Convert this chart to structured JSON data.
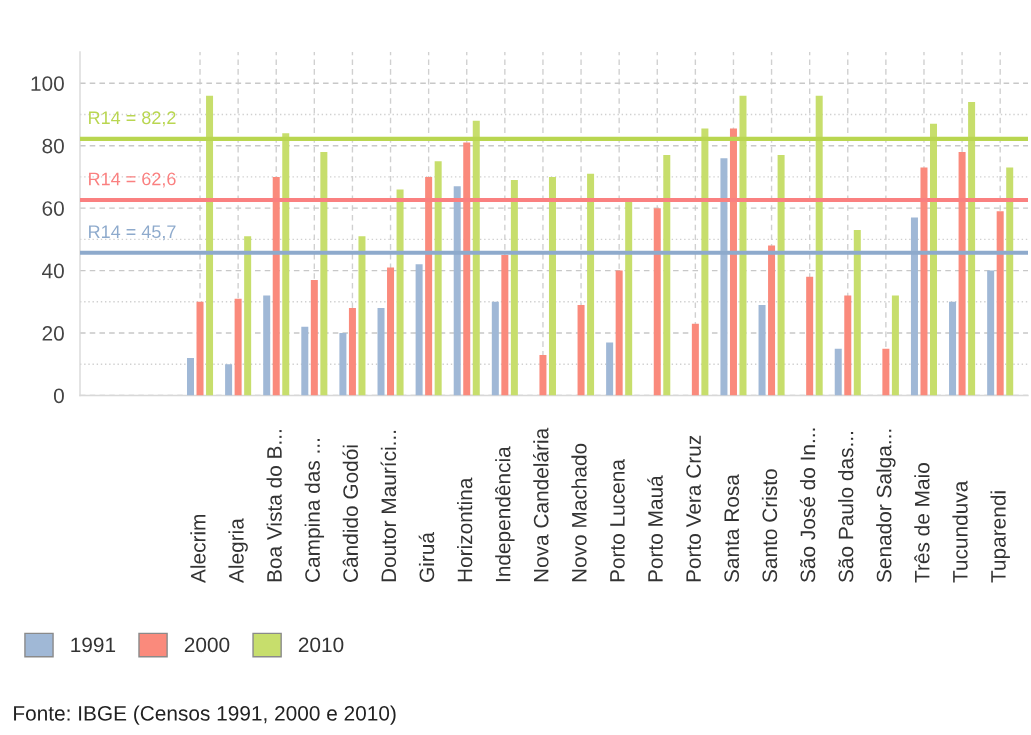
{
  "chart_data": {
    "type": "bar",
    "categories": [
      "Alecrim",
      "Alegria",
      "Boa Vista do B...",
      "Campina das ...",
      "Cândido Godói",
      "Doutor Mauríci...",
      "Giruá",
      "Horizontina",
      "Independência",
      "Nova Candelária",
      "Novo Machado",
      "Porto Lucena",
      "Porto Mauá",
      "Porto Vera Cruz",
      "Santa Rosa",
      "Santo Cristo",
      "São José do In...",
      "São Paulo das...",
      "Senador Salga...",
      "Três de Maio",
      "Tucunduva",
      "Tuparendi"
    ],
    "series": [
      {
        "name": "1991",
        "color": "#a0b8d6",
        "values": [
          12,
          10,
          32,
          22,
          20,
          28,
          42,
          67,
          30,
          null,
          null,
          17,
          null,
          null,
          76,
          29,
          null,
          15,
          null,
          57,
          30,
          40
        ]
      },
      {
        "name": "2000",
        "color": "#fa8a7c",
        "values": [
          30,
          31,
          70,
          37,
          28,
          41,
          70,
          81,
          45,
          13,
          29,
          40,
          60,
          23,
          85.5,
          48,
          38,
          32,
          15,
          73,
          78,
          59
        ]
      },
      {
        "name": "2010",
        "color": "#c7de6c",
        "values": [
          96,
          51,
          84,
          78,
          51,
          66,
          75,
          88,
          69,
          70,
          71,
          62,
          77,
          85.5,
          96,
          77,
          96,
          53,
          32,
          87,
          94,
          73
        ]
      }
    ],
    "ylim": [
      0,
      110
    ],
    "yticks": [
      0,
      {
        "value": 10,
        "label": null
      },
      20,
      {
        "value": 30,
        "label": null
      },
      40,
      {
        "value": 50,
        "label": null
      },
      60,
      {
        "value": 70,
        "label": null
      },
      80,
      {
        "value": 90,
        "label": null
      },
      100
    ],
    "grid": true,
    "legend": "bottom left",
    "ref_lines": [
      {
        "axis": "y",
        "value": 45.7,
        "label": "R14 = 45,7",
        "color": "#8eaacc"
      },
      {
        "axis": "y",
        "value": 62.6,
        "label": "R14 = 62,6",
        "color": "#fa8080"
      },
      {
        "axis": "y",
        "value": 82.2,
        "label": "R14 = 82,2",
        "color": "#b9d650"
      }
    ],
    "annotations": [
      "Fonte: IBGE (Censos 1991, 2000 e 2010)"
    ]
  }
}
